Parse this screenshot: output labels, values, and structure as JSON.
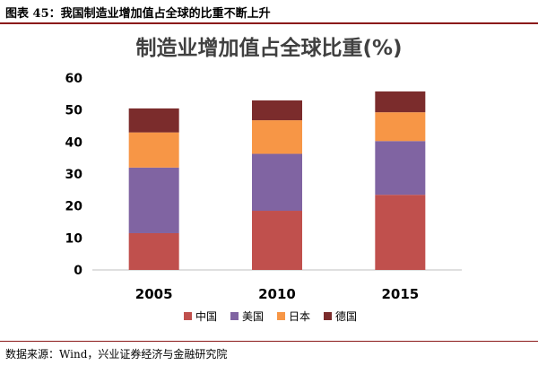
{
  "figure": {
    "caption": "图表 45：我国制造业增加值占全球的比重不断上升",
    "source": "数据来源：Wind，兴业证券经济与金融研究院"
  },
  "chart_data": {
    "type": "bar",
    "stacked": true,
    "title": "制造业增加值占全球比重(%)",
    "xlabel": "",
    "ylabel": "",
    "categories": [
      "2005",
      "2010",
      "2015"
    ],
    "ylim": [
      0,
      60
    ],
    "yticks": [
      0,
      10,
      20,
      30,
      40,
      50,
      60
    ],
    "grid": false,
    "legend_position": "bottom",
    "series": [
      {
        "name": "中国",
        "color": "#c0504d",
        "values": [
          11.5,
          18.5,
          23.5
        ]
      },
      {
        "name": "美国",
        "color": "#8064a2",
        "values": [
          20.5,
          17.8,
          16.8
        ]
      },
      {
        "name": "日本",
        "color": "#f79646",
        "values": [
          11.0,
          10.5,
          9.0
        ]
      },
      {
        "name": "德国",
        "color": "#7b2c2c",
        "values": [
          7.5,
          6.2,
          6.5
        ]
      }
    ]
  }
}
